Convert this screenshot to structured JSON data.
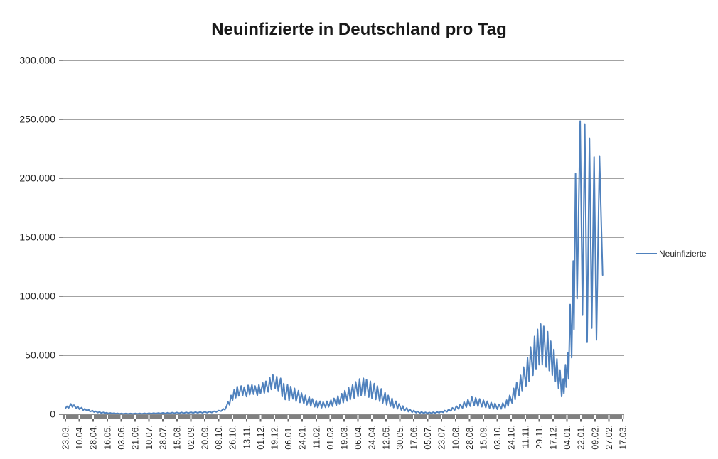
{
  "title": "Neuinfizierte in Deutschland pro Tag",
  "legend": {
    "label": "Neuinfizierte",
    "position": "right"
  },
  "colors": {
    "series_line": "#4F81BD",
    "gridline": "#A3A3A3",
    "axis_line": "#8C8C8C",
    "axis_band": "#808080",
    "axis_tick": "#666666",
    "label_text": "#262626",
    "background": "#FFFFFF"
  },
  "chart_data": {
    "type": "line",
    "title": "Neuinfizierte in Deutschland pro Tag",
    "xlabel": "",
    "ylabel": "",
    "grid": "horizontal",
    "legend_position": "right",
    "ylim": [
      0,
      300000
    ],
    "y_ticks": [
      0,
      50000,
      100000,
      150000,
      200000,
      250000,
      300000
    ],
    "y_tick_labels": [
      "0",
      "50.000",
      "100.000",
      "150.000",
      "200.000",
      "250.000",
      "300.000"
    ],
    "x_tick_labels": [
      "23.03.",
      "10.04.",
      "28.04.",
      "16.05.",
      "03.06.",
      "21.06.",
      "10.07.",
      "28.07.",
      "15.08.",
      "02.09.",
      "20.09.",
      "08.10.",
      "26.10.",
      "13.11.",
      "01.12.",
      "19.12.",
      "06.01.",
      "24.01.",
      "11.02.",
      "01.03.",
      "19.03.",
      "06.04.",
      "24.04.",
      "12.05.",
      "30.05.",
      "17.06.",
      "05.07.",
      "23.07.",
      "10.08.",
      "28.08.",
      "15.09.",
      "03.10.",
      "24.10.",
      "11.11.",
      "29.11.",
      "17.12.",
      "04.01.",
      "22.01.",
      "09.02.",
      "27.02.",
      "17.03."
    ],
    "x_tick_interval_days": 18,
    "x_day_range": [
      0,
      720
    ],
    "series": [
      {
        "name": "Neuinfizierte",
        "color": "#4F81BD",
        "points": [
          [
            0,
            5000
          ],
          [
            2,
            6800
          ],
          [
            4,
            5200
          ],
          [
            7,
            8800
          ],
          [
            9,
            6200
          ],
          [
            11,
            7800
          ],
          [
            14,
            5100
          ],
          [
            16,
            6700
          ],
          [
            18,
            4300
          ],
          [
            21,
            5700
          ],
          [
            23,
            3500
          ],
          [
            25,
            4700
          ],
          [
            28,
            2900
          ],
          [
            30,
            3900
          ],
          [
            32,
            2300
          ],
          [
            35,
            3100
          ],
          [
            37,
            1850
          ],
          [
            39,
            2550
          ],
          [
            42,
            1450
          ],
          [
            44,
            2050
          ],
          [
            46,
            1150
          ],
          [
            49,
            1650
          ],
          [
            51,
            900
          ],
          [
            53,
            1350
          ],
          [
            56,
            750
          ],
          [
            58,
            1150
          ],
          [
            60,
            600
          ],
          [
            63,
            1000
          ],
          [
            65,
            500
          ],
          [
            67,
            850
          ],
          [
            70,
            420
          ],
          [
            72,
            700
          ],
          [
            75,
            380
          ],
          [
            78,
            700
          ],
          [
            81,
            350
          ],
          [
            84,
            660
          ],
          [
            87,
            390
          ],
          [
            90,
            730
          ],
          [
            93,
            420
          ],
          [
            96,
            780
          ],
          [
            99,
            450
          ],
          [
            102,
            820
          ],
          [
            105,
            490
          ],
          [
            108,
            900
          ],
          [
            111,
            540
          ],
          [
            114,
            1000
          ],
          [
            117,
            580
          ],
          [
            120,
            1100
          ],
          [
            123,
            640
          ],
          [
            126,
            1200
          ],
          [
            129,
            680
          ],
          [
            132,
            1300
          ],
          [
            135,
            760
          ],
          [
            138,
            1450
          ],
          [
            141,
            830
          ],
          [
            144,
            1550
          ],
          [
            147,
            890
          ],
          [
            150,
            1650
          ],
          [
            153,
            940
          ],
          [
            156,
            1700
          ],
          [
            159,
            1000
          ],
          [
            162,
            1800
          ],
          [
            165,
            1060
          ],
          [
            168,
            1900
          ],
          [
            171,
            1120
          ],
          [
            174,
            2000
          ],
          [
            177,
            1200
          ],
          [
            180,
            2100
          ],
          [
            183,
            1300
          ],
          [
            186,
            2250
          ],
          [
            189,
            1450
          ],
          [
            192,
            2600
          ],
          [
            195,
            1900
          ],
          [
            198,
            3200
          ],
          [
            201,
            2600
          ],
          [
            204,
            4600
          ],
          [
            206,
            3800
          ],
          [
            208,
            6500
          ],
          [
            210,
            10500
          ],
          [
            212,
            8000
          ],
          [
            214,
            16000
          ],
          [
            216,
            12000
          ],
          [
            218,
            21000
          ],
          [
            220,
            14000
          ],
          [
            222,
            23500
          ],
          [
            224,
            15500
          ],
          [
            227,
            24000
          ],
          [
            229,
            16000
          ],
          [
            231,
            23000
          ],
          [
            234,
            15000
          ],
          [
            236,
            24500
          ],
          [
            238,
            16500
          ],
          [
            241,
            25000
          ],
          [
            243,
            17000
          ],
          [
            245,
            24000
          ],
          [
            248,
            16000
          ],
          [
            250,
            25000
          ],
          [
            252,
            17500
          ],
          [
            255,
            26500
          ],
          [
            257,
            18000
          ],
          [
            259,
            28000
          ],
          [
            262,
            19000
          ],
          [
            264,
            31000
          ],
          [
            266,
            21000
          ],
          [
            268,
            33500
          ],
          [
            271,
            22000
          ],
          [
            273,
            32000
          ],
          [
            275,
            20000
          ],
          [
            278,
            30500
          ],
          [
            280,
            15000
          ],
          [
            282,
            26000
          ],
          [
            284,
            12500
          ],
          [
            287,
            25000
          ],
          [
            289,
            11500
          ],
          [
            291,
            23500
          ],
          [
            294,
            13000
          ],
          [
            296,
            22000
          ],
          [
            298,
            11000
          ],
          [
            301,
            20000
          ],
          [
            303,
            10000
          ],
          [
            305,
            18000
          ],
          [
            308,
            9000
          ],
          [
            310,
            16000
          ],
          [
            312,
            8000
          ],
          [
            315,
            14500
          ],
          [
            317,
            7000
          ],
          [
            319,
            13000
          ],
          [
            322,
            6300
          ],
          [
            324,
            11500
          ],
          [
            326,
            5800
          ],
          [
            329,
            11000
          ],
          [
            331,
            5500
          ],
          [
            333,
            10500
          ],
          [
            336,
            5800
          ],
          [
            338,
            11000
          ],
          [
            340,
            6200
          ],
          [
            343,
            12000
          ],
          [
            345,
            6800
          ],
          [
            347,
            13500
          ],
          [
            350,
            7600
          ],
          [
            352,
            15500
          ],
          [
            354,
            8600
          ],
          [
            357,
            17500
          ],
          [
            359,
            9800
          ],
          [
            361,
            20000
          ],
          [
            364,
            11200
          ],
          [
            366,
            22500
          ],
          [
            368,
            12500
          ],
          [
            371,
            25000
          ],
          [
            373,
            13800
          ],
          [
            375,
            27500
          ],
          [
            378,
            15000
          ],
          [
            380,
            30000
          ],
          [
            382,
            16000
          ],
          [
            385,
            30500
          ],
          [
            387,
            15500
          ],
          [
            389,
            29500
          ],
          [
            392,
            14500
          ],
          [
            394,
            28000
          ],
          [
            396,
            13500
          ],
          [
            399,
            26000
          ],
          [
            401,
            12500
          ],
          [
            403,
            24000
          ],
          [
            406,
            11000
          ],
          [
            408,
            21500
          ],
          [
            410,
            9500
          ],
          [
            413,
            18500
          ],
          [
            415,
            8000
          ],
          [
            417,
            16000
          ],
          [
            420,
            6800
          ],
          [
            422,
            13500
          ],
          [
            424,
            5600
          ],
          [
            427,
            11000
          ],
          [
            429,
            4600
          ],
          [
            431,
            8800
          ],
          [
            434,
            3600
          ],
          [
            436,
            7000
          ],
          [
            438,
            2800
          ],
          [
            441,
            5400
          ],
          [
            443,
            2200
          ],
          [
            445,
            4200
          ],
          [
            448,
            1700
          ],
          [
            450,
            3200
          ],
          [
            453,
            1300
          ],
          [
            455,
            2500
          ],
          [
            458,
            1050
          ],
          [
            460,
            2000
          ],
          [
            463,
            900
          ],
          [
            465,
            1700
          ],
          [
            468,
            850
          ],
          [
            470,
            1600
          ],
          [
            473,
            900
          ],
          [
            475,
            1750
          ],
          [
            478,
            1050
          ],
          [
            480,
            2000
          ],
          [
            483,
            1250
          ],
          [
            485,
            2500
          ],
          [
            488,
            1600
          ],
          [
            490,
            3200
          ],
          [
            493,
            2100
          ],
          [
            495,
            4200
          ],
          [
            498,
            2800
          ],
          [
            500,
            5500
          ],
          [
            503,
            3600
          ],
          [
            505,
            7000
          ],
          [
            508,
            4400
          ],
          [
            510,
            8500
          ],
          [
            513,
            5200
          ],
          [
            515,
            10500
          ],
          [
            518,
            6000
          ],
          [
            520,
            12500
          ],
          [
            523,
            6800
          ],
          [
            525,
            14800
          ],
          [
            528,
            7200
          ],
          [
            530,
            14000
          ],
          [
            533,
            6800
          ],
          [
            535,
            13000
          ],
          [
            538,
            6300
          ],
          [
            540,
            12000
          ],
          [
            543,
            5700
          ],
          [
            545,
            11000
          ],
          [
            548,
            5100
          ],
          [
            550,
            10000
          ],
          [
            553,
            4600
          ],
          [
            555,
            9200
          ],
          [
            558,
            4200
          ],
          [
            560,
            8500
          ],
          [
            563,
            4500
          ],
          [
            565,
            9500
          ],
          [
            568,
            5500
          ],
          [
            570,
            12000
          ],
          [
            572,
            7000
          ],
          [
            574,
            16000
          ],
          [
            577,
            9500
          ],
          [
            579,
            22000
          ],
          [
            581,
            12500
          ],
          [
            583,
            27000
          ],
          [
            586,
            16000
          ],
          [
            588,
            33000
          ],
          [
            590,
            20000
          ],
          [
            592,
            40000
          ],
          [
            595,
            24000
          ],
          [
            597,
            48000
          ],
          [
            599,
            28000
          ],
          [
            601,
            57000
          ],
          [
            604,
            33000
          ],
          [
            606,
            66000
          ],
          [
            608,
            38000
          ],
          [
            610,
            72000
          ],
          [
            612,
            42000
          ],
          [
            614,
            76500
          ],
          [
            616,
            42000
          ],
          [
            618,
            74500
          ],
          [
            621,
            40000
          ],
          [
            623,
            70000
          ],
          [
            625,
            37000
          ],
          [
            627,
            62000
          ],
          [
            629,
            33000
          ],
          [
            631,
            55000
          ],
          [
            633,
            28000
          ],
          [
            635,
            47000
          ],
          [
            637,
            22000
          ],
          [
            639,
            37000
          ],
          [
            641,
            15000
          ],
          [
            643,
            30000
          ],
          [
            644,
            17500
          ],
          [
            646,
            42000
          ],
          [
            647,
            23000
          ],
          [
            649,
            52000
          ],
          [
            650,
            30000
          ],
          [
            652,
            93000
          ],
          [
            654,
            48000
          ],
          [
            656,
            130000
          ],
          [
            657,
            72000
          ],
          [
            659,
            204000
          ],
          [
            661,
            98000
          ],
          [
            665,
            248500
          ],
          [
            668,
            84000
          ],
          [
            671,
            246000
          ],
          [
            674,
            61000
          ],
          [
            677,
            234000
          ],
          [
            680,
            73000
          ],
          [
            683,
            218000
          ],
          [
            686,
            63000
          ],
          [
            690,
            219000
          ],
          [
            694,
            118000
          ]
        ]
      }
    ]
  }
}
